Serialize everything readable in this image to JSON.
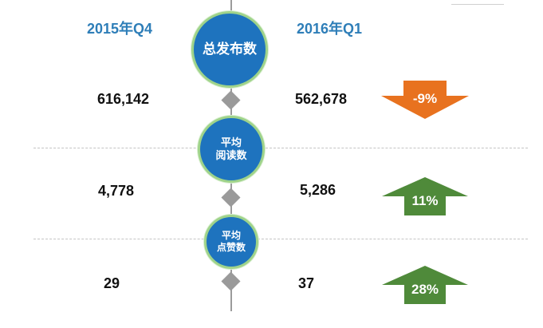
{
  "headers": {
    "left": "2015年Q4",
    "right": "2016年Q1"
  },
  "metrics": [
    {
      "label_lines": [
        "总发布数"
      ],
      "left": "616,142",
      "right": "562,678",
      "change": "-9%",
      "direction": "down",
      "color": "#e8721f"
    },
    {
      "label_lines": [
        "平均",
        "阅读数"
      ],
      "left": "4,778",
      "right": "5,286",
      "change": "11%",
      "direction": "up",
      "color": "#4f8a3a"
    },
    {
      "label_lines": [
        "平均",
        "点赞数"
      ],
      "left": "29",
      "right": "37",
      "change": "28%",
      "direction": "up",
      "color": "#4f8a3a"
    }
  ],
  "colors": {
    "header": "#2e7eb8",
    "circle_fill": "#1e73be",
    "circle_ring": "#9fd38a",
    "axis": "#9b9b9b"
  }
}
